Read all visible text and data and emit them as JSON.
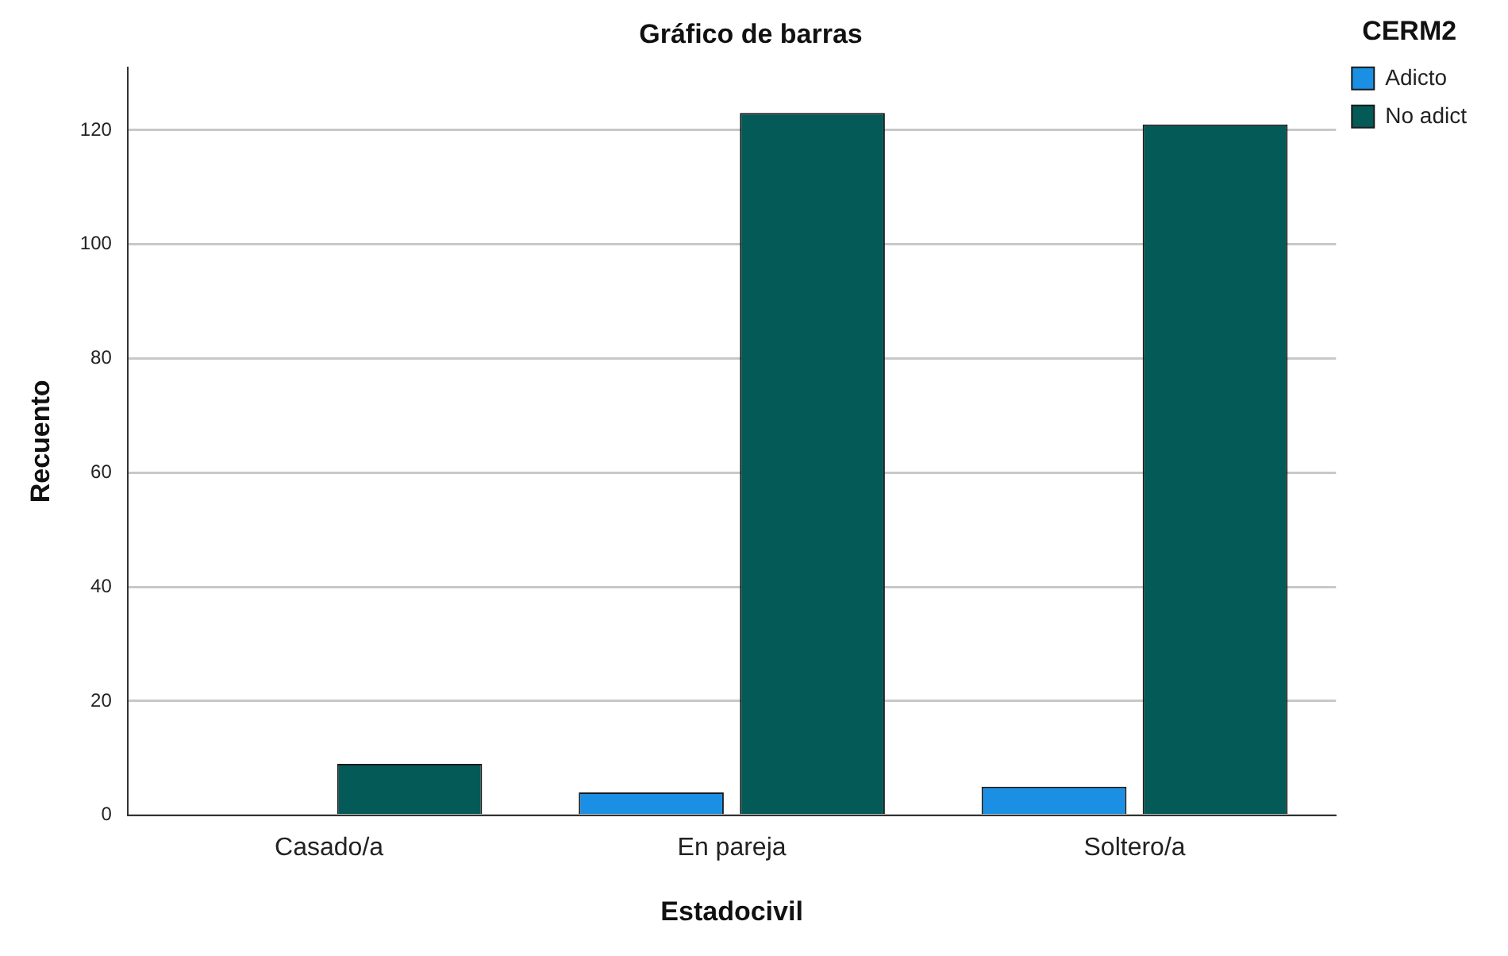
{
  "chart_data": {
    "type": "bar",
    "title": "Gráfico de barras",
    "xlabel": "Estadocivil",
    "ylabel": "Recuento",
    "legend_title": "CERM2",
    "categories": [
      "Casado/a",
      "En pareja",
      "Soltero/a"
    ],
    "series": [
      {
        "name": "Adicto",
        "color": "#1a8fe3",
        "values": [
          0,
          4,
          5
        ]
      },
      {
        "name": "No adict",
        "color": "#045a57",
        "values": [
          9,
          123,
          121
        ]
      }
    ],
    "ylim": [
      0,
      131
    ],
    "yticks": [
      0,
      20,
      40,
      60,
      80,
      100,
      120
    ],
    "grid": "y",
    "legend": "top right"
  }
}
